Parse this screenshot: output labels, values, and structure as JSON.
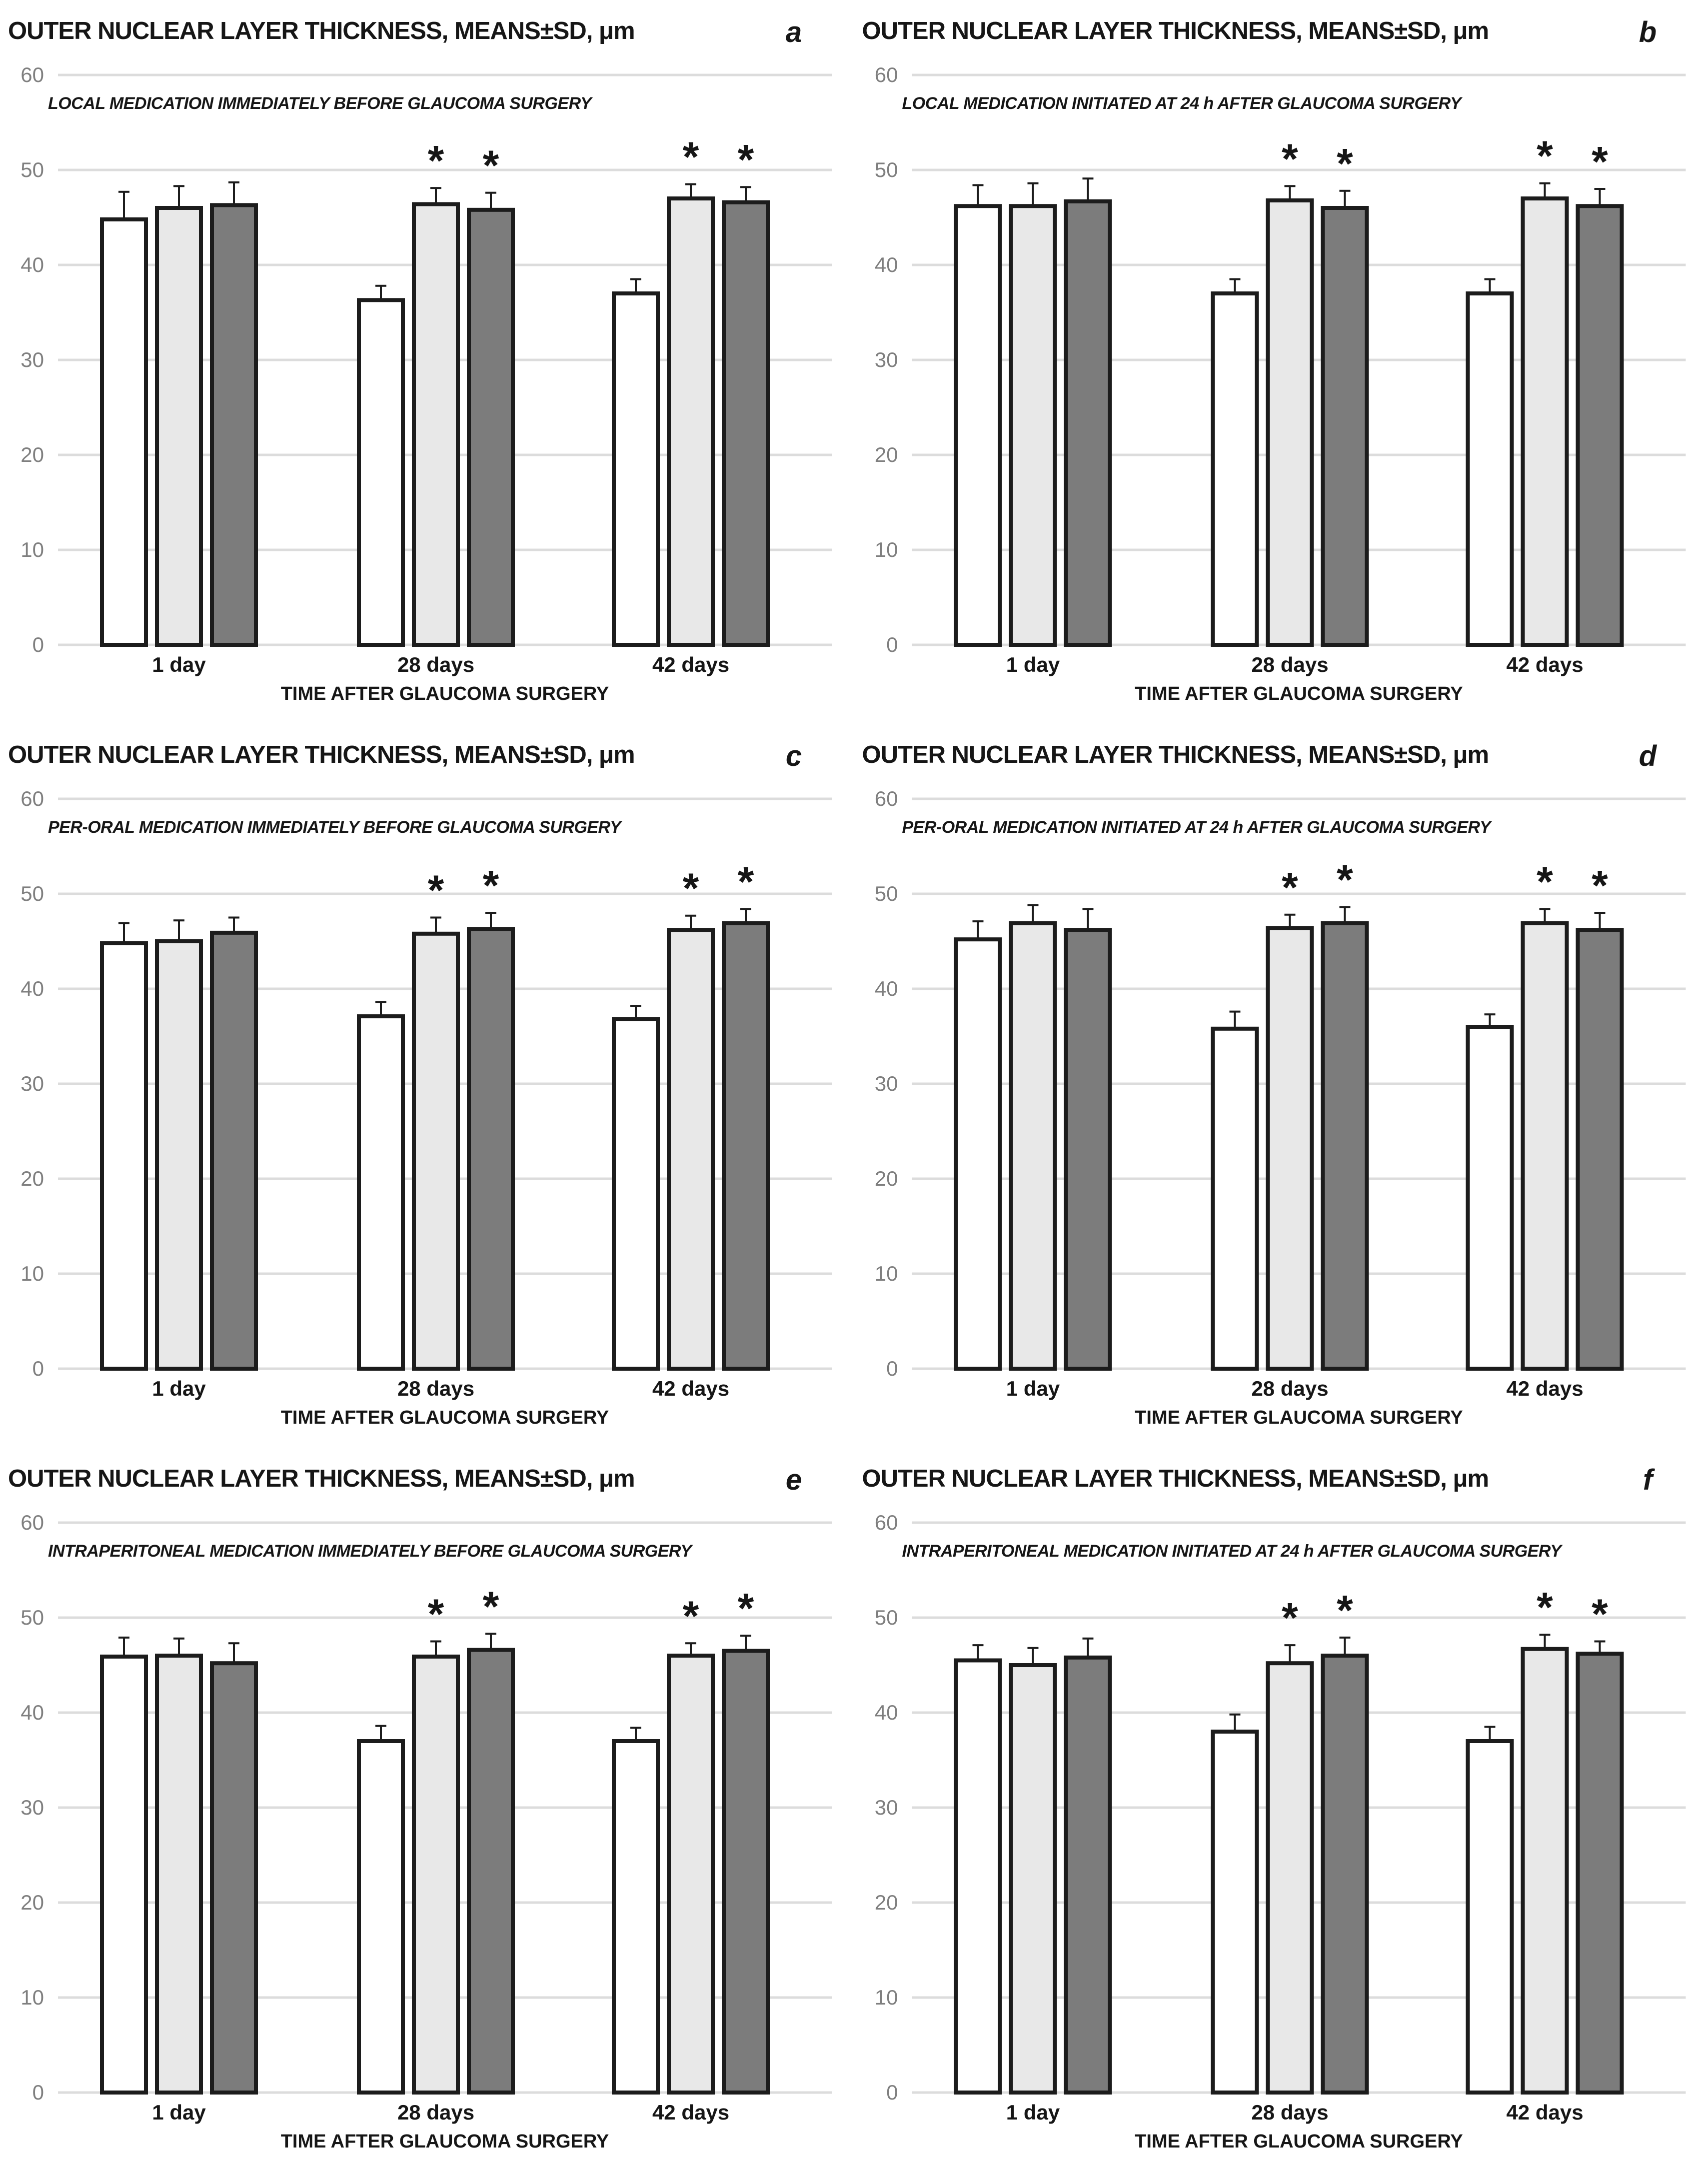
{
  "figure": {
    "title": "OUTER NUCLEAR LAYER THICKNESS, MEANS±SD, μm",
    "xlabel": "TIME AFTER GLAUCOMA SURGERY",
    "categories": [
      "1 day",
      "28 days",
      "42 days"
    ],
    "yticks": [
      0,
      10,
      20,
      30,
      40,
      50,
      60
    ],
    "ylim": [
      0,
      60
    ],
    "sig_marker": "*",
    "colors": {
      "bar_white": "#ffffff",
      "bar_light_gray": "#e8e8e8",
      "bar_dark_gray": "#7c7c7c",
      "bar_border": "#1c1c1c",
      "gridline": "#dcdcdc",
      "tick_label": "#7f7f7f",
      "text": "#161616"
    }
  },
  "chart_data": [
    {
      "type": "bar",
      "panel_letter": "a",
      "title": "OUTER NUCLEAR LAYER THICKNESS, MEANS±SD, μm",
      "subtitle": "LOCAL MEDICATION IMMEDIATELY BEFORE GLAUCOMA SURGERY",
      "xlabel": "TIME AFTER GLAUCOMA SURGERY",
      "categories": [
        "1 day",
        "28 days",
        "42 days"
      ],
      "ylim": [
        0,
        60
      ],
      "yticks": [
        0,
        10,
        20,
        30,
        40,
        50,
        60
      ],
      "sig_marker": "*",
      "series": [
        {
          "name": "white-bars",
          "fill": "#ffffff",
          "values": [
            44.8,
            36.3,
            37.0
          ],
          "sd": [
            2.9,
            1.5,
            1.5
          ],
          "sig": [
            false,
            false,
            false
          ]
        },
        {
          "name": "light-gray-bars",
          "fill": "#e8e8e8",
          "values": [
            46.0,
            46.4,
            47.0
          ],
          "sd": [
            2.3,
            1.7,
            1.5
          ],
          "sig": [
            false,
            true,
            true
          ]
        },
        {
          "name": "dark-gray-bars",
          "fill": "#7c7c7c",
          "values": [
            46.3,
            45.8,
            46.6
          ],
          "sd": [
            2.4,
            1.8,
            1.6
          ],
          "sig": [
            false,
            true,
            true
          ]
        }
      ]
    },
    {
      "type": "bar",
      "panel_letter": "b",
      "title": "OUTER NUCLEAR LAYER THICKNESS, MEANS±SD, μm",
      "subtitle": "LOCAL MEDICATION INITIATED AT 24 h AFTER GLAUCOMA SURGERY",
      "xlabel": "TIME AFTER GLAUCOMA SURGERY",
      "categories": [
        "1 day",
        "28 days",
        "42 days"
      ],
      "ylim": [
        0,
        60
      ],
      "yticks": [
        0,
        10,
        20,
        30,
        40,
        50,
        60
      ],
      "sig_marker": "*",
      "series": [
        {
          "name": "white-bars",
          "fill": "#ffffff",
          "values": [
            46.2,
            37.0,
            37.0
          ],
          "sd": [
            2.2,
            1.5,
            1.5
          ],
          "sig": [
            false,
            false,
            false
          ]
        },
        {
          "name": "light-gray-bars",
          "fill": "#e8e8e8",
          "values": [
            46.2,
            46.8,
            47.0
          ],
          "sd": [
            2.4,
            1.5,
            1.6
          ],
          "sig": [
            false,
            true,
            true
          ]
        },
        {
          "name": "dark-gray-bars",
          "fill": "#7c7c7c",
          "values": [
            46.7,
            46.0,
            46.2
          ],
          "sd": [
            2.4,
            1.8,
            1.8
          ],
          "sig": [
            false,
            true,
            true
          ]
        }
      ]
    },
    {
      "type": "bar",
      "panel_letter": "c",
      "title": "OUTER NUCLEAR LAYER THICKNESS, MEANS±SD, μm",
      "subtitle": "PER-ORAL MEDICATION IMMEDIATELY BEFORE GLAUCOMA SURGERY",
      "xlabel": "TIME AFTER GLAUCOMA SURGERY",
      "categories": [
        "1 day",
        "28 days",
        "42 days"
      ],
      "ylim": [
        0,
        60
      ],
      "yticks": [
        0,
        10,
        20,
        30,
        40,
        50,
        60
      ],
      "sig_marker": "*",
      "series": [
        {
          "name": "white-bars",
          "fill": "#ffffff",
          "values": [
            44.8,
            37.1,
            36.8
          ],
          "sd": [
            2.1,
            1.5,
            1.4
          ],
          "sig": [
            false,
            false,
            false
          ]
        },
        {
          "name": "light-gray-bars",
          "fill": "#e8e8e8",
          "values": [
            45.0,
            45.8,
            46.2
          ],
          "sd": [
            2.2,
            1.7,
            1.5
          ],
          "sig": [
            false,
            true,
            true
          ]
        },
        {
          "name": "dark-gray-bars",
          "fill": "#7c7c7c",
          "values": [
            45.9,
            46.3,
            46.9
          ],
          "sd": [
            1.6,
            1.7,
            1.5
          ],
          "sig": [
            false,
            true,
            true
          ]
        }
      ]
    },
    {
      "type": "bar",
      "panel_letter": "d",
      "title": "OUTER NUCLEAR LAYER THICKNESS, MEANS±SD, μm",
      "subtitle": "PER-ORAL MEDICATION INITIATED AT 24 h AFTER GLAUCOMA SURGERY",
      "xlabel": "TIME AFTER GLAUCOMA SURGERY",
      "categories": [
        "1 day",
        "28 days",
        "42 days"
      ],
      "ylim": [
        0,
        60
      ],
      "yticks": [
        0,
        10,
        20,
        30,
        40,
        50,
        60
      ],
      "sig_marker": "*",
      "series": [
        {
          "name": "white-bars",
          "fill": "#ffffff",
          "values": [
            45.2,
            35.8,
            36.0
          ],
          "sd": [
            1.9,
            1.8,
            1.3
          ],
          "sig": [
            false,
            false,
            false
          ]
        },
        {
          "name": "light-gray-bars",
          "fill": "#e8e8e8",
          "values": [
            46.9,
            46.4,
            46.9
          ],
          "sd": [
            1.9,
            1.4,
            1.5
          ],
          "sig": [
            false,
            true,
            true
          ]
        },
        {
          "name": "dark-gray-bars",
          "fill": "#7c7c7c",
          "values": [
            46.2,
            46.9,
            46.2
          ],
          "sd": [
            2.2,
            1.7,
            1.8
          ],
          "sig": [
            false,
            true,
            true
          ]
        }
      ]
    },
    {
      "type": "bar",
      "panel_letter": "e",
      "title": "OUTER NUCLEAR LAYER THICKNESS, MEANS±SD, μm",
      "subtitle": "INTRAPERITONEAL MEDICATION IMMEDIATELY BEFORE GLAUCOMA SURGERY",
      "xlabel": "TIME AFTER GLAUCOMA SURGERY",
      "categories": [
        "1 day",
        "28 days",
        "42 days"
      ],
      "ylim": [
        0,
        60
      ],
      "yticks": [
        0,
        10,
        20,
        30,
        40,
        50,
        60
      ],
      "sig_marker": "*",
      "series": [
        {
          "name": "white-bars",
          "fill": "#ffffff",
          "values": [
            45.9,
            37.0,
            37.0
          ],
          "sd": [
            2.0,
            1.6,
            1.4
          ],
          "sig": [
            false,
            false,
            false
          ]
        },
        {
          "name": "light-gray-bars",
          "fill": "#e8e8e8",
          "values": [
            46.0,
            45.9,
            46.0
          ],
          "sd": [
            1.8,
            1.6,
            1.3
          ],
          "sig": [
            false,
            true,
            true
          ]
        },
        {
          "name": "dark-gray-bars",
          "fill": "#7c7c7c",
          "values": [
            45.2,
            46.6,
            46.5
          ],
          "sd": [
            2.1,
            1.7,
            1.6
          ],
          "sig": [
            false,
            true,
            true
          ]
        }
      ]
    },
    {
      "type": "bar",
      "panel_letter": "f",
      "title": "OUTER NUCLEAR LAYER THICKNESS, MEANS±SD, μm",
      "subtitle": "INTRAPERITONEAL MEDICATION INITIATED AT 24 h AFTER GLAUCOMA SURGERY",
      "xlabel": "TIME AFTER GLAUCOMA SURGERY",
      "categories": [
        "1 day",
        "28 days",
        "42 days"
      ],
      "ylim": [
        0,
        60
      ],
      "yticks": [
        0,
        10,
        20,
        30,
        40,
        50,
        60
      ],
      "sig_marker": "*",
      "series": [
        {
          "name": "white-bars",
          "fill": "#ffffff",
          "values": [
            45.5,
            38.0,
            37.0
          ],
          "sd": [
            1.6,
            1.8,
            1.5
          ],
          "sig": [
            false,
            false,
            false
          ]
        },
        {
          "name": "light-gray-bars",
          "fill": "#e8e8e8",
          "values": [
            45.0,
            45.2,
            46.7
          ],
          "sd": [
            1.8,
            1.9,
            1.5
          ],
          "sig": [
            false,
            true,
            true
          ]
        },
        {
          "name": "dark-gray-bars",
          "fill": "#7c7c7c",
          "values": [
            45.8,
            46.0,
            46.2
          ],
          "sd": [
            2.0,
            1.9,
            1.3
          ],
          "sig": [
            false,
            true,
            true
          ]
        }
      ]
    }
  ]
}
